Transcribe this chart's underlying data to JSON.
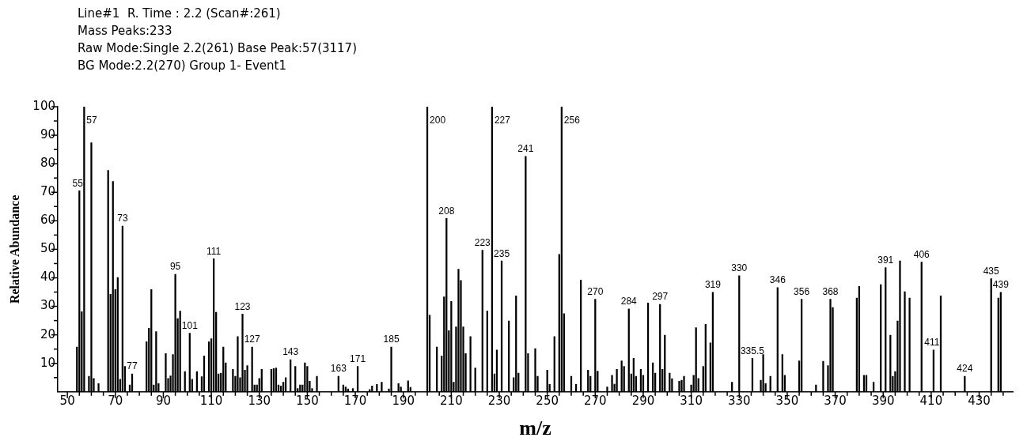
{
  "chart_data": {
    "type": "bar",
    "xlabel": "m/z",
    "ylabel": "Relative Abundance",
    "color": "#000000",
    "grid": false,
    "legend": false,
    "x": [
      54,
      55,
      56,
      57,
      59,
      60,
      61,
      63,
      67,
      68,
      69,
      70,
      71,
      72,
      73,
      74,
      76,
      77,
      83,
      84,
      85,
      86,
      87,
      88,
      91,
      92,
      93,
      94,
      95,
      96,
      97,
      99,
      101,
      102,
      104,
      106,
      107,
      109,
      110,
      111,
      112,
      113,
      114,
      115,
      116,
      119,
      120,
      121,
      122,
      123,
      124,
      125,
      127,
      128,
      129,
      130,
      131,
      135,
      136,
      137,
      138,
      139,
      140,
      141,
      143,
      145,
      146,
      147,
      148,
      149,
      150,
      151,
      152,
      154,
      163,
      165,
      166,
      167,
      169,
      171,
      176,
      177,
      179,
      181,
      184,
      185,
      188,
      189,
      192,
      193,
      200,
      201,
      204,
      206,
      207,
      208,
      209,
      210,
      211,
      212,
      213,
      214,
      215,
      216,
      218,
      220,
      223,
      225,
      227,
      228,
      229,
      231,
      234,
      236,
      237,
      238,
      241,
      242,
      245,
      246,
      250,
      251,
      253,
      255,
      256,
      257,
      260,
      262,
      264,
      267,
      268,
      270,
      271,
      275,
      277,
      278,
      279,
      281,
      282,
      284,
      285,
      286,
      287,
      289,
      290,
      292,
      294,
      295,
      297,
      298,
      299,
      301,
      302,
      305,
      306,
      307,
      310,
      311,
      312,
      313,
      315,
      316,
      318,
      319,
      327,
      330,
      335.5,
      339,
      340,
      341,
      343,
      346,
      348,
      349,
      355,
      356,
      362,
      365,
      367,
      368,
      369,
      379,
      380,
      382,
      383,
      386,
      389,
      391,
      393,
      394,
      395,
      396,
      397,
      399,
      401,
      406,
      411,
      414,
      424,
      435,
      438,
      439
    ],
    "values": [
      15.7,
      70.5,
      28.1,
      100,
      5.5,
      87.4,
      4.7,
      2.9,
      77.7,
      34.2,
      73.8,
      35.9,
      40.1,
      4.4,
      58.1,
      8.9,
      2.4,
      6.3,
      17.6,
      22.3,
      35.9,
      2.4,
      21.1,
      2.9,
      13.4,
      4.7,
      5.6,
      13.1,
      41.2,
      25.7,
      28.3,
      7.1,
      20.6,
      4.4,
      7.1,
      5.3,
      12.6,
      17.6,
      18.6,
      46.7,
      27.9,
      6.3,
      6.6,
      15.7,
      10.2,
      7.9,
      5.5,
      19.4,
      5.0,
      27.3,
      7.6,
      9.2,
      15.7,
      2.4,
      2.4,
      4.7,
      7.9,
      7.9,
      8.2,
      8.4,
      2.4,
      2.1,
      3.4,
      5.0,
      11.3,
      8.9,
      1.2,
      2.4,
      2.4,
      10.2,
      8.9,
      3.7,
      1.2,
      5.5,
      5.5,
      2.4,
      1.7,
      1.0,
      1.2,
      8.9,
      0.8,
      2.1,
      2.6,
      3.4,
      1.0,
      15.7,
      2.9,
      1.7,
      3.9,
      1.6,
      100,
      26.9,
      15.7,
      12.6,
      33.3,
      60.8,
      21.5,
      31.7,
      3.4,
      22.8,
      43.0,
      39.1,
      22.8,
      13.4,
      19.4,
      8.4,
      49.7,
      28.3,
      100,
      6.3,
      14.7,
      45.9,
      24.9,
      5.0,
      33.7,
      6.6,
      82.6,
      13.4,
      15.2,
      5.5,
      7.6,
      2.6,
      19.4,
      48.2,
      100,
      27.4,
      5.5,
      2.6,
      39.2,
      7.6,
      5.5,
      32.5,
      7.3,
      1.7,
      5.8,
      2.7,
      7.9,
      10.9,
      8.9,
      29.1,
      6.3,
      11.8,
      5.5,
      7.9,
      5.8,
      31.2,
      10.2,
      6.6,
      30.7,
      7.9,
      19.9,
      6.6,
      4.6,
      3.7,
      4.1,
      5.5,
      2.4,
      5.8,
      22.5,
      4.7,
      8.9,
      23.7,
      17.2,
      34.9,
      3.4,
      40.7,
      11.8,
      4.1,
      13.1,
      2.9,
      5.5,
      36.6,
      13.1,
      5.8,
      10.9,
      32.5,
      2.4,
      10.7,
      9.2,
      32.5,
      29.6,
      32.9,
      37.0,
      5.8,
      5.8,
      3.4,
      37.6,
      43.6,
      19.9,
      5.5,
      7.1,
      24.9,
      45.9,
      35.1,
      32.9,
      45.5,
      14.7,
      33.7,
      5.5,
      39.7,
      32.9,
      34.9
    ],
    "xlim": [
      46,
      444
    ],
    "xticks": [
      50,
      {
        "value": 55,
        "label": null
      },
      {
        "value": 60,
        "label": null
      },
      {
        "value": 65,
        "label": null
      },
      70,
      {
        "value": 75,
        "label": null
      },
      {
        "value": 80,
        "label": null
      },
      {
        "value": 85,
        "label": null
      },
      90,
      {
        "value": 95,
        "label": null
      },
      {
        "value": 100,
        "label": null
      },
      {
        "value": 105,
        "label": null
      },
      110,
      {
        "value": 115,
        "label": null
      },
      {
        "value": 120,
        "label": null
      },
      {
        "value": 125,
        "label": null
      },
      130,
      {
        "value": 135,
        "label": null
      },
      {
        "value": 140,
        "label": null
      },
      {
        "value": 145,
        "label": null
      },
      150,
      {
        "value": 155,
        "label": null
      },
      {
        "value": 160,
        "label": null
      },
      {
        "value": 165,
        "label": null
      },
      170,
      {
        "value": 175,
        "label": null
      },
      {
        "value": 180,
        "label": null
      },
      {
        "value": 185,
        "label": null
      },
      190,
      {
        "value": 195,
        "label": null
      },
      {
        "value": 200,
        "label": null
      },
      {
        "value": 205,
        "label": null
      },
      210,
      {
        "value": 215,
        "label": null
      },
      {
        "value": 220,
        "label": null
      },
      {
        "value": 225,
        "label": null
      },
      230,
      {
        "value": 235,
        "label": null
      },
      {
        "value": 240,
        "label": null
      },
      {
        "value": 245,
        "label": null
      },
      250,
      {
        "value": 255,
        "label": null
      },
      {
        "value": 260,
        "label": null
      },
      {
        "value": 265,
        "label": null
      },
      270,
      {
        "value": 275,
        "label": null
      },
      {
        "value": 280,
        "label": null
      },
      {
        "value": 285,
        "label": null
      },
      290,
      {
        "value": 295,
        "label": null
      },
      {
        "value": 300,
        "label": null
      },
      {
        "value": 305,
        "label": null
      },
      310,
      {
        "value": 315,
        "label": null
      },
      {
        "value": 320,
        "label": null
      },
      {
        "value": 325,
        "label": null
      },
      330,
      {
        "value": 335,
        "label": null
      },
      {
        "value": 340,
        "label": null
      },
      {
        "value": 345,
        "label": null
      },
      350,
      {
        "value": 355,
        "label": null
      },
      {
        "value": 360,
        "label": null
      },
      {
        "value": 365,
        "label": null
      },
      370,
      {
        "value": 375,
        "label": null
      },
      {
        "value": 380,
        "label": null
      },
      {
        "value": 385,
        "label": null
      },
      390,
      {
        "value": 395,
        "label": null
      },
      {
        "value": 400,
        "label": null
      },
      {
        "value": 405,
        "label": null
      },
      410,
      {
        "value": 415,
        "label": null
      },
      {
        "value": 420,
        "label": null
      },
      {
        "value": 425,
        "label": null
      },
      430,
      {
        "value": 435,
        "label": null
      },
      {
        "value": 440,
        "label": null
      }
    ],
    "ylim": [
      0,
      100
    ],
    "yticks": [
      {
        "value": 5,
        "label": null
      },
      10,
      {
        "value": 15,
        "label": null
      },
      20,
      {
        "value": 25,
        "label": null
      },
      30,
      {
        "value": 35,
        "label": null
      },
      40,
      {
        "value": 45,
        "label": null
      },
      50,
      {
        "value": 55,
        "label": null
      },
      60,
      {
        "value": 65,
        "label": null
      },
      70,
      {
        "value": 75,
        "label": null
      },
      80,
      {
        "value": 85,
        "label": null
      },
      90,
      {
        "value": 95,
        "label": null
      },
      100
    ],
    "annotations": [
      "Line#1  R. Time : 2.2 (Scan#:261)",
      "Mass Peaks:233",
      "Raw Mode:Single 2.2(261) Base Peak:57(3117)",
      "BG Mode:2.2(270) Group 1- Event1",
      {
        "text": "55",
        "x": 55,
        "y": 70.5
      },
      {
        "text": "57",
        "x": 57,
        "y": 100
      },
      {
        "text": "73",
        "x": 73,
        "y": 58.1
      },
      {
        "text": "77",
        "x": 77,
        "y": 6.3
      },
      {
        "text": "95",
        "x": 95,
        "y": 41.2
      },
      {
        "text": "101",
        "x": 101,
        "y": 20.6
      },
      {
        "text": "111",
        "x": 111,
        "y": 46.7
      },
      {
        "text": "123",
        "x": 123,
        "y": 27.3
      },
      {
        "text": "127",
        "x": 127,
        "y": 15.7
      },
      {
        "text": "143",
        "x": 143,
        "y": 11.3
      },
      {
        "text": "163",
        "x": 163,
        "y": 5.5
      },
      {
        "text": "171",
        "x": 171,
        "y": 8.9
      },
      {
        "text": "185",
        "x": 185,
        "y": 15.7
      },
      {
        "text": "200",
        "x": 200,
        "y": 100
      },
      {
        "text": "208",
        "x": 208,
        "y": 60.8
      },
      {
        "text": "223",
        "x": 223,
        "y": 49.7
      },
      {
        "text": "227",
        "x": 227,
        "y": 100
      },
      {
        "text": "235",
        "x": 231,
        "y": 45.9
      },
      {
        "text": "241",
        "x": 241,
        "y": 82.6
      },
      {
        "text": "256",
        "x": 256,
        "y": 100
      },
      {
        "text": "270",
        "x": 270,
        "y": 32.5
      },
      {
        "text": "284",
        "x": 284,
        "y": 29.1
      },
      {
        "text": "297",
        "x": 297,
        "y": 30.7
      },
      {
        "text": "319",
        "x": 319,
        "y": 34.9
      },
      {
        "text": "330",
        "x": 330,
        "y": 40.7
      },
      {
        "text": "335.5",
        "x": 335.5,
        "y": 11.8
      },
      {
        "text": "346",
        "x": 346,
        "y": 36.6
      },
      {
        "text": "356",
        "x": 356,
        "y": 32.5
      },
      {
        "text": "368",
        "x": 368,
        "y": 32.5
      },
      {
        "text": "391",
        "x": 391,
        "y": 43.6
      },
      {
        "text": "406",
        "x": 406,
        "y": 45.5
      },
      {
        "text": "411",
        "x": 411,
        "y": 14.7
      },
      {
        "text": "424",
        "x": 424,
        "y": 5.5
      },
      {
        "text": "435",
        "x": 435,
        "y": 39.7
      },
      {
        "text": "439",
        "x": 439,
        "y": 34.9
      }
    ]
  }
}
